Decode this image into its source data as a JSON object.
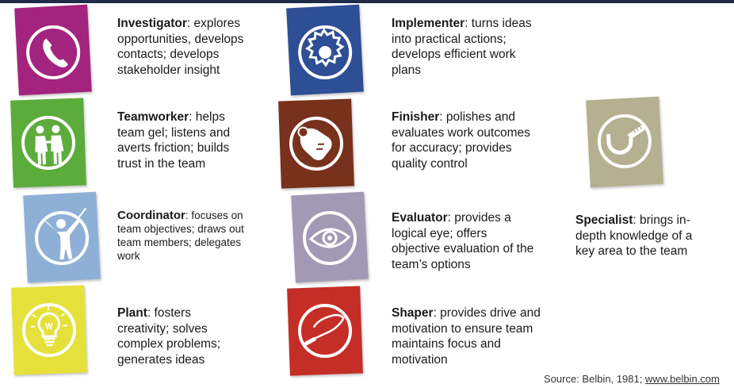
{
  "roles": {
    "investigator": {
      "name": "Investigator",
      "desc": ": explores opportunities, develops contacts; develops stakeholder insight",
      "color": "#a3247e"
    },
    "teamworker": {
      "name": "Teamworker",
      "desc": ": helps team gel; listens and averts friction; builds trust in the team",
      "color": "#5cac3c"
    },
    "coordinator": {
      "name": "Coordinator",
      "desc": ": focuses on team objectives; draws out team members; delegates work",
      "color": "#8fb0d6"
    },
    "plant": {
      "name": "Plant",
      "desc": ": fosters creativity; solves complex problems; generates ideas",
      "color": "#e6e13a"
    },
    "implementer": {
      "name": "Implementer",
      "desc": ": turns ideas into practical actions; develops efficient work plans",
      "color": "#2e4e95"
    },
    "finisher": {
      "name": "Finisher",
      "desc": ": polishes and evaluates work outcomes for accuracy; provides quality control",
      "color": "#77311d"
    },
    "evaluator": {
      "name": "Evaluator",
      "desc": ": provides a logical eye; offers objective evaluation of the team’s options",
      "color": "#a29ab5"
    },
    "shaper": {
      "name": "Shaper",
      "desc": ": provides drive and motivation to ensure team maintains focus and motivation",
      "color": "#c42e27"
    },
    "specialist": {
      "name": "Specialist",
      "desc": ": brings in-depth knowledge of a key area to the team",
      "color": "#b4b090"
    }
  },
  "icons": {
    "investigator": "telephone-icon",
    "teamworker": "two-people-icon",
    "coordinator": "conductor-icon",
    "plant": "light-bulb-icon",
    "implementer": "gear-icon",
    "finisher": "hand-polishing-icon",
    "evaluator": "eye-icon",
    "shaper": "whip-icon",
    "specialist": "micrometer-icon"
  },
  "source": {
    "prefix": "Source: Belbin, 1981; ",
    "link": "www.belbin.com"
  }
}
